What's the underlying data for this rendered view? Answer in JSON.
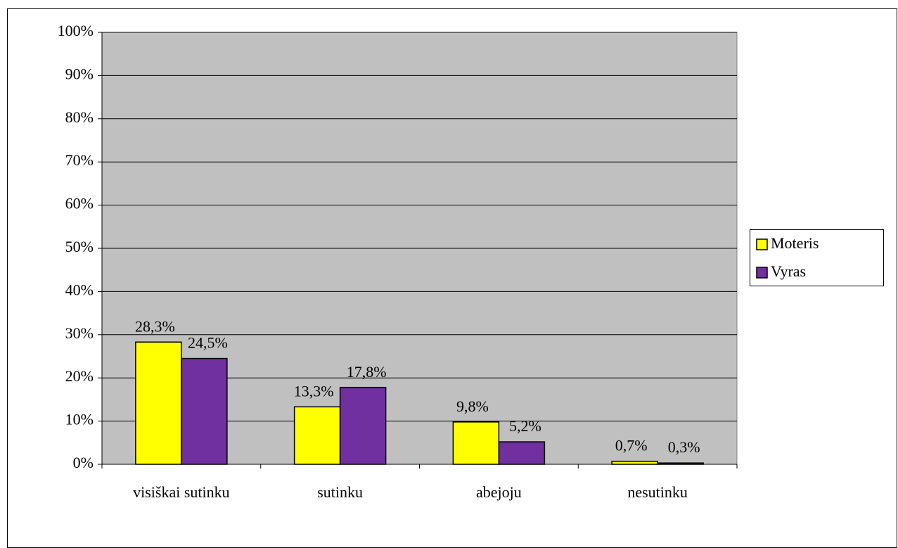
{
  "chart_data": {
    "type": "bar",
    "categories": [
      "visiškai sutinku",
      "sutinku",
      "abejoju",
      "nesutinku"
    ],
    "series": [
      {
        "name": "Moteris",
        "color": "#ffff00",
        "values": [
          28.3,
          13.3,
          9.8,
          0.7
        ],
        "value_labels": [
          "28,3%",
          "13,3%",
          "9,8%",
          "0,7%"
        ]
      },
      {
        "name": "Vyras",
        "color": "#7030a0",
        "values": [
          24.5,
          17.8,
          5.2,
          0.3
        ],
        "value_labels": [
          "24,5%",
          "17,8%",
          "5,2%",
          "0,3%"
        ]
      }
    ],
    "ylim": [
      0,
      100
    ],
    "yticks": [
      {
        "value": 0,
        "label": "0%"
      },
      {
        "value": 10,
        "label": "10%"
      },
      {
        "value": 20,
        "label": "20%"
      },
      {
        "value": 30,
        "label": "30%"
      },
      {
        "value": 40,
        "label": "40%"
      },
      {
        "value": 50,
        "label": "50%"
      },
      {
        "value": 60,
        "label": "60%"
      },
      {
        "value": 70,
        "label": "70%"
      },
      {
        "value": 80,
        "label": "80%"
      },
      {
        "value": 90,
        "label": "90%"
      },
      {
        "value": 100,
        "label": "100%"
      }
    ],
    "grid": true,
    "legend": "right",
    "plot_background": "#c0c0c0"
  }
}
